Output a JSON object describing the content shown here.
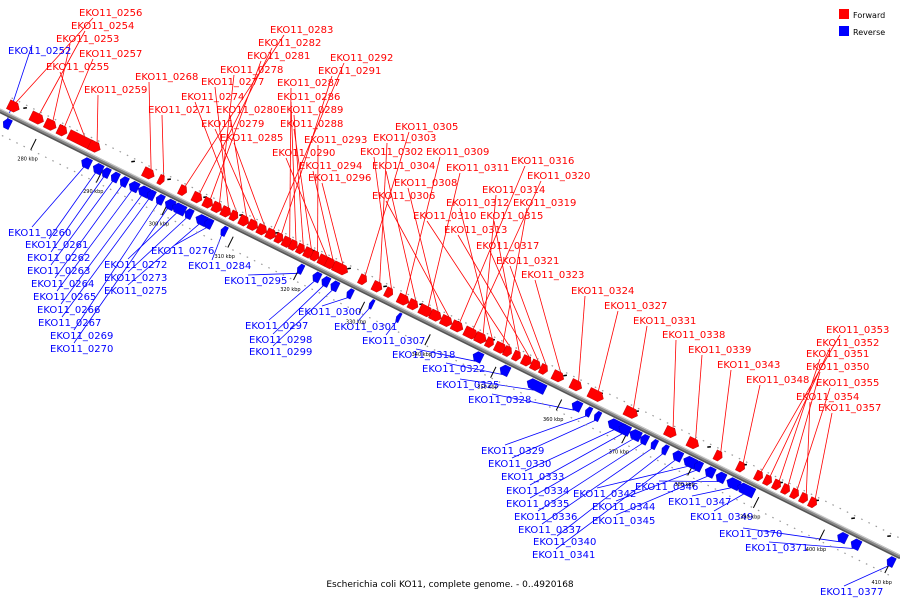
{
  "caption": "Escherichia coli KO11, complete genome. - 0..4920168",
  "legend": [
    {
      "label": "Forward",
      "color": "#ff0000"
    },
    {
      "label": "Reverse",
      "color": "#0000ff"
    }
  ],
  "colors": {
    "forward": "#ff0000",
    "reverse": "#0000ff",
    "backbone": "#888888",
    "tick": "#000000"
  },
  "kbp_markers": [
    "280 kbp",
    "290 kbp",
    "300 kbp",
    "310 kbp",
    "320 kbp",
    "330 kbp",
    "340 kbp",
    "350 kbp",
    "360 kbp",
    "370 kbp",
    "380 kbp",
    "390 kbp",
    "400 kbp",
    "410 kbp"
  ],
  "forward_labels": [
    "EKO11_0256",
    "EKO11_0254",
    "EKO11_0253",
    "EKO11_0257",
    "EKO11_0255",
    "EKO11_0259",
    "EKO11_0268",
    "EKO11_0271",
    "EKO11_0283",
    "EKO11_0282",
    "EKO11_0281",
    "EKO11_0278",
    "EKO11_0277",
    "EKO11_0274",
    "EKO11_0280",
    "EKO11_0279",
    "EKO11_0285",
    "EKO11_0292",
    "EKO11_0291",
    "EKO11_0287",
    "EKO11_0286",
    "EKO11_0289",
    "EKO11_0288",
    "EKO11_0293",
    "EKO11_0290",
    "EKO11_0294",
    "EKO11_0296",
    "EKO11_0305",
    "EKO11_0303",
    "EKO11_0302",
    "EKO11_0309",
    "EKO11_0304",
    "EKO11_0311",
    "EKO11_0308",
    "EKO11_0306",
    "EKO11_0316",
    "EKO11_0320",
    "EKO11_0314",
    "EKO11_0312",
    "EKO11_0319",
    "EKO11_0310",
    "EKO11_0315",
    "EKO11_0313",
    "EKO11_0317",
    "EKO11_0321",
    "EKO11_0323",
    "EKO11_0324",
    "EKO11_0327",
    "EKO11_0331",
    "EKO11_0338",
    "EKO11_0339",
    "EKO11_0343",
    "EKO11_0348",
    "EKO11_0353",
    "EKO11_0352",
    "EKO11_0351",
    "EKO11_0350",
    "EKO11_0355",
    "EKO11_0354",
    "EKO11_0357"
  ],
  "reverse_labels": [
    "EKO11_0252",
    "EKO11_0260",
    "EKO11_0261",
    "EKO11_0262",
    "EKO11_0263",
    "EKO11_0264",
    "EKO11_0265",
    "EKO11_0266",
    "EKO11_0267",
    "EKO11_0269",
    "EKO11_0270",
    "EKO11_0272",
    "EKO11_0273",
    "EKO11_0275",
    "EKO11_0276",
    "EKO11_0284",
    "EKO11_0295",
    "EKO11_0297",
    "EKO11_0298",
    "EKO11_0299",
    "EKO11_0300",
    "EKO11_0301",
    "EKO11_0307",
    "EKO11_0318",
    "EKO11_0322",
    "EKO11_0325",
    "EKO11_0328",
    "EKO11_0329",
    "EKO11_0330",
    "EKO11_0333",
    "EKO11_0334",
    "EKO11_0335",
    "EKO11_0336",
    "EKO11_0337",
    "EKO11_0340",
    "EKO11_0341",
    "EKO11_0342",
    "EKO11_0344",
    "EKO11_0345",
    "EKO11_0346",
    "EKO11_0347",
    "EKO11_0349",
    "EKO11_0370",
    "EKO11_0371",
    "EKO11_0377"
  ]
}
